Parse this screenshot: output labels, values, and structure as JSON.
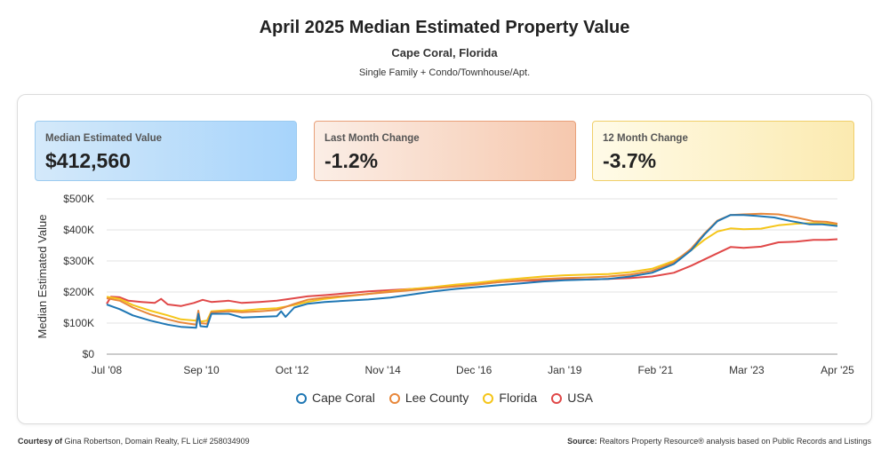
{
  "header": {
    "title": "April 2025 Median Estimated Property Value",
    "location": "Cape Coral, Florida",
    "property_types": "Single Family + Condo/Townhouse/Apt."
  },
  "cards": [
    {
      "label": "Median Estimated Value",
      "value": "$412,560"
    },
    {
      "label": "Last Month Change",
      "value": "-1.2%"
    },
    {
      "label": "12 Month Change",
      "value": "-3.7%"
    }
  ],
  "footer": {
    "courtesy_label": "Courtesy of",
    "courtesy_text": "Gina Robertson, Domain Realty, FL Lic# 258034909",
    "source_label": "Source:",
    "source_text": "Realtors Property Resource® analysis based on Public Records and Listings"
  },
  "colors": {
    "Cape Coral": "#1f77b4",
    "Lee County": "#e8873a",
    "Florida": "#f5c518",
    "USA": "#e04848"
  },
  "chart_data": {
    "type": "line",
    "ylabel": "Median Estimated Value",
    "xlabel": "",
    "ylim": [
      0,
      500000
    ],
    "xlim": [
      2008.5,
      2025.25
    ],
    "y_ticks": [
      "$0",
      "$100K",
      "$200K",
      "$300K",
      "$400K",
      "$500K"
    ],
    "y_tick_values": [
      0,
      100000,
      200000,
      300000,
      400000,
      500000
    ],
    "x_ticks": [
      "Jul '08",
      "Sep '10",
      "Oct '12",
      "Nov '14",
      "Dec '16",
      "Jan '19",
      "Feb '21",
      "Mar '23",
      "Apr '25"
    ],
    "x_tick_values": [
      2008.5,
      2010.67,
      2012.75,
      2014.83,
      2016.92,
      2019.0,
      2021.08,
      2023.17,
      2025.25
    ],
    "grid": true,
    "legend_position": "bottom",
    "series": [
      {
        "name": "Cape Coral",
        "points": [
          [
            2008.5,
            160000
          ],
          [
            2008.8,
            145000
          ],
          [
            2009.1,
            125000
          ],
          [
            2009.5,
            108000
          ],
          [
            2009.9,
            95000
          ],
          [
            2010.2,
            88000
          ],
          [
            2010.55,
            85000
          ],
          [
            2010.6,
            130000
          ],
          [
            2010.65,
            90000
          ],
          [
            2010.8,
            88000
          ],
          [
            2010.9,
            130000
          ],
          [
            2011.3,
            130000
          ],
          [
            2011.6,
            118000
          ],
          [
            2012.0,
            120000
          ],
          [
            2012.4,
            122000
          ],
          [
            2012.5,
            138000
          ],
          [
            2012.6,
            120000
          ],
          [
            2012.8,
            150000
          ],
          [
            2013.1,
            162000
          ],
          [
            2013.5,
            168000
          ],
          [
            2014.0,
            172000
          ],
          [
            2014.5,
            176000
          ],
          [
            2015.0,
            182000
          ],
          [
            2015.5,
            192000
          ],
          [
            2016.0,
            202000
          ],
          [
            2016.5,
            210000
          ],
          [
            2017.0,
            216000
          ],
          [
            2017.5,
            222000
          ],
          [
            2018.0,
            228000
          ],
          [
            2018.5,
            234000
          ],
          [
            2019.0,
            238000
          ],
          [
            2019.5,
            240000
          ],
          [
            2020.0,
            242000
          ],
          [
            2020.5,
            250000
          ],
          [
            2021.0,
            262000
          ],
          [
            2021.5,
            290000
          ],
          [
            2021.9,
            335000
          ],
          [
            2022.2,
            385000
          ],
          [
            2022.5,
            428000
          ],
          [
            2022.8,
            448000
          ],
          [
            2023.1,
            448000
          ],
          [
            2023.4,
            445000
          ],
          [
            2023.8,
            440000
          ],
          [
            2024.2,
            428000
          ],
          [
            2024.6,
            418000
          ],
          [
            2024.9,
            418000
          ],
          [
            2025.25,
            412560
          ]
        ]
      },
      {
        "name": "Lee County",
        "points": [
          [
            2008.5,
            180000
          ],
          [
            2008.8,
            172000
          ],
          [
            2009.1,
            150000
          ],
          [
            2009.5,
            128000
          ],
          [
            2009.9,
            112000
          ],
          [
            2010.2,
            102000
          ],
          [
            2010.55,
            95000
          ],
          [
            2010.6,
            140000
          ],
          [
            2010.65,
            100000
          ],
          [
            2010.8,
            98000
          ],
          [
            2010.9,
            135000
          ],
          [
            2011.3,
            138000
          ],
          [
            2011.6,
            135000
          ],
          [
            2012.0,
            138000
          ],
          [
            2012.4,
            142000
          ],
          [
            2012.8,
            162000
          ],
          [
            2013.1,
            175000
          ],
          [
            2013.5,
            182000
          ],
          [
            2014.0,
            188000
          ],
          [
            2014.5,
            194000
          ],
          [
            2015.0,
            200000
          ],
          [
            2015.5,
            206000
          ],
          [
            2016.0,
            212000
          ],
          [
            2016.5,
            218000
          ],
          [
            2017.0,
            224000
          ],
          [
            2017.5,
            232000
          ],
          [
            2018.0,
            238000
          ],
          [
            2018.5,
            242000
          ],
          [
            2019.0,
            245000
          ],
          [
            2019.5,
            247000
          ],
          [
            2020.0,
            250000
          ],
          [
            2020.5,
            256000
          ],
          [
            2021.0,
            268000
          ],
          [
            2021.5,
            295000
          ],
          [
            2021.9,
            340000
          ],
          [
            2022.2,
            388000
          ],
          [
            2022.5,
            430000
          ],
          [
            2022.8,
            448000
          ],
          [
            2023.1,
            450000
          ],
          [
            2023.5,
            452000
          ],
          [
            2023.9,
            450000
          ],
          [
            2024.3,
            440000
          ],
          [
            2024.7,
            428000
          ],
          [
            2025.0,
            426000
          ],
          [
            2025.25,
            420000
          ]
        ]
      },
      {
        "name": "Florida",
        "points": [
          [
            2008.5,
            185000
          ],
          [
            2008.8,
            178000
          ],
          [
            2009.1,
            158000
          ],
          [
            2009.5,
            140000
          ],
          [
            2009.9,
            125000
          ],
          [
            2010.2,
            112000
          ],
          [
            2010.55,
            108000
          ],
          [
            2010.6,
            125000
          ],
          [
            2010.65,
            105000
          ],
          [
            2010.8,
            108000
          ],
          [
            2010.9,
            138000
          ],
          [
            2011.3,
            142000
          ],
          [
            2011.6,
            140000
          ],
          [
            2012.0,
            145000
          ],
          [
            2012.4,
            148000
          ],
          [
            2012.8,
            158000
          ],
          [
            2013.1,
            168000
          ],
          [
            2013.5,
            178000
          ],
          [
            2014.0,
            186000
          ],
          [
            2014.5,
            194000
          ],
          [
            2015.0,
            202000
          ],
          [
            2015.5,
            210000
          ],
          [
            2016.0,
            216000
          ],
          [
            2016.5,
            224000
          ],
          [
            2017.0,
            230000
          ],
          [
            2017.5,
            238000
          ],
          [
            2018.0,
            244000
          ],
          [
            2018.5,
            250000
          ],
          [
            2019.0,
            254000
          ],
          [
            2019.5,
            256000
          ],
          [
            2020.0,
            258000
          ],
          [
            2020.5,
            264000
          ],
          [
            2021.0,
            275000
          ],
          [
            2021.5,
            300000
          ],
          [
            2021.9,
            335000
          ],
          [
            2022.2,
            368000
          ],
          [
            2022.5,
            395000
          ],
          [
            2022.8,
            405000
          ],
          [
            2023.1,
            402000
          ],
          [
            2023.5,
            404000
          ],
          [
            2023.9,
            415000
          ],
          [
            2024.3,
            420000
          ],
          [
            2024.7,
            422000
          ],
          [
            2025.0,
            420000
          ],
          [
            2025.25,
            418000
          ]
        ]
      },
      {
        "name": "USA",
        "points": [
          [
            2008.5,
            162000
          ],
          [
            2008.6,
            185000
          ],
          [
            2008.8,
            183000
          ],
          [
            2009.0,
            172000
          ],
          [
            2009.3,
            168000
          ],
          [
            2009.6,
            165000
          ],
          [
            2009.75,
            178000
          ],
          [
            2009.9,
            160000
          ],
          [
            2010.2,
            155000
          ],
          [
            2010.5,
            165000
          ],
          [
            2010.7,
            175000
          ],
          [
            2010.9,
            168000
          ],
          [
            2011.3,
            172000
          ],
          [
            2011.6,
            165000
          ],
          [
            2012.0,
            168000
          ],
          [
            2012.4,
            172000
          ],
          [
            2012.8,
            180000
          ],
          [
            2013.1,
            186000
          ],
          [
            2013.5,
            190000
          ],
          [
            2014.0,
            196000
          ],
          [
            2014.5,
            202000
          ],
          [
            2015.0,
            206000
          ],
          [
            2015.5,
            210000
          ],
          [
            2016.0,
            214000
          ],
          [
            2016.5,
            220000
          ],
          [
            2017.0,
            226000
          ],
          [
            2017.5,
            232000
          ],
          [
            2018.0,
            236000
          ],
          [
            2018.5,
            238000
          ],
          [
            2019.0,
            240000
          ],
          [
            2019.5,
            240000
          ],
          [
            2020.0,
            242000
          ],
          [
            2020.5,
            245000
          ],
          [
            2021.0,
            250000
          ],
          [
            2021.5,
            262000
          ],
          [
            2021.9,
            285000
          ],
          [
            2022.2,
            305000
          ],
          [
            2022.5,
            325000
          ],
          [
            2022.8,
            345000
          ],
          [
            2023.1,
            342000
          ],
          [
            2023.5,
            346000
          ],
          [
            2023.9,
            360000
          ],
          [
            2024.3,
            362000
          ],
          [
            2024.7,
            368000
          ],
          [
            2025.0,
            368000
          ],
          [
            2025.25,
            370000
          ]
        ]
      }
    ]
  }
}
